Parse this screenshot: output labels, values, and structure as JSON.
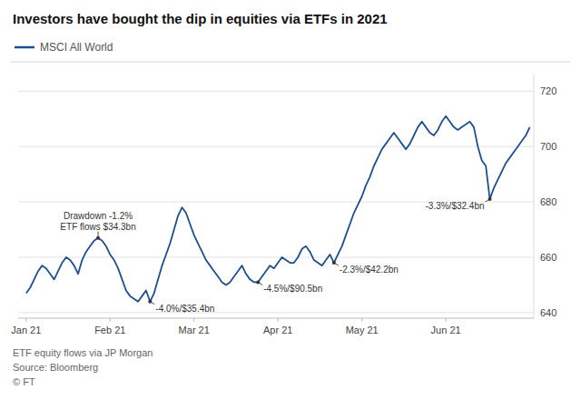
{
  "chart_data": {
    "type": "line",
    "title": "Investors have bought the dip in equities via ETFs in 2021",
    "footer": [
      "ETF equity flows via JP Morgan",
      "Source: Bloomberg",
      "© FT"
    ],
    "series": [
      {
        "name": "MSCI All World",
        "color": "#1f4e8c",
        "values": [
          647,
          649,
          652,
          655,
          657,
          656,
          654,
          652,
          655,
          658,
          660,
          659,
          657,
          654,
          659,
          662,
          664,
          666,
          667,
          666,
          664,
          661,
          659,
          656,
          652,
          648,
          646,
          645,
          644,
          646,
          648,
          644,
          647,
          652,
          657,
          661,
          665,
          670,
          675,
          678,
          676,
          672,
          668,
          665,
          662,
          659,
          657,
          655,
          653,
          651,
          650,
          651,
          653,
          655,
          657,
          654,
          652,
          651,
          651,
          653,
          655,
          657,
          656,
          658,
          660,
          659,
          658,
          658,
          660,
          663,
          664,
          662,
          659,
          658,
          657,
          659,
          661,
          658,
          661,
          664,
          668,
          672,
          676,
          679,
          682,
          686,
          689,
          693,
          696,
          699,
          701,
          703,
          705,
          703,
          701,
          699,
          701,
          704,
          707,
          709,
          707,
          705,
          704,
          706,
          709,
          711,
          709,
          707,
          706,
          707,
          708,
          709,
          707,
          700,
          695,
          693,
          681,
          685,
          688,
          691,
          694,
          696,
          698,
          700,
          702,
          704,
          707
        ]
      }
    ],
    "xlim": [
      -2,
      127
    ],
    "xticks": [
      {
        "value": 0,
        "label": "Jan 21"
      },
      {
        "value": 21,
        "label": "Feb 21"
      },
      {
        "value": 42,
        "label": "Mar 21"
      },
      {
        "value": 63,
        "label": "Apr 21"
      },
      {
        "value": 84,
        "label": "May 21"
      },
      {
        "value": 105,
        "label": "Jun 21"
      }
    ],
    "ylim": [
      638,
      726
    ],
    "yticks": [
      640,
      660,
      680,
      700,
      720
    ],
    "grid": true,
    "annotations": [
      {
        "text": "Drawdown -1.2%\nETF flows $34.3bn",
        "x": 18,
        "y": 667
      },
      {
        "text": "-4.0%/$35.4bn",
        "x": 31,
        "y": 644
      },
      {
        "text": "-4.5%/$90.5bn",
        "x": 58,
        "y": 651
      },
      {
        "text": "-2.3%/$42.2bn",
        "x": 77,
        "y": 658
      },
      {
        "text": "-3.3%/$32.4bn",
        "x": 116,
        "y": 681
      }
    ]
  }
}
